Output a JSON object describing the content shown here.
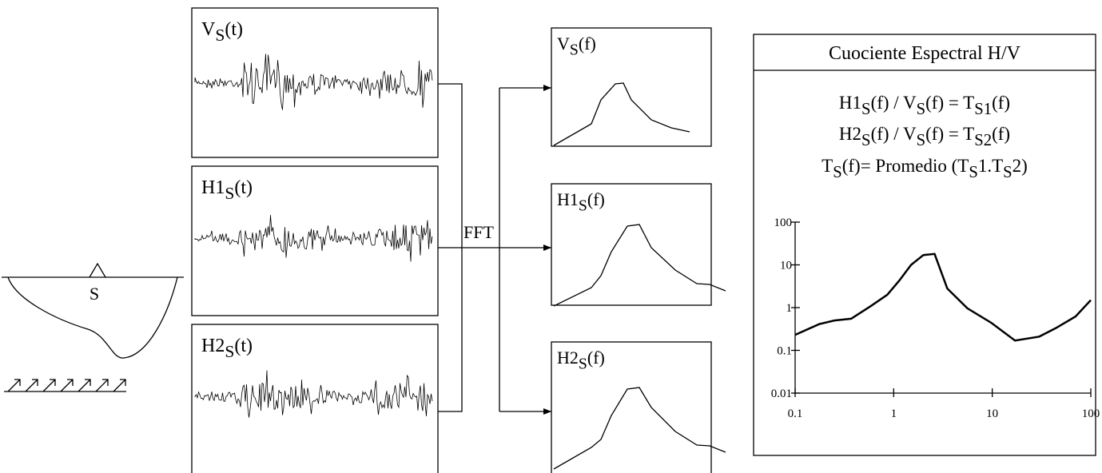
{
  "site_label": "S",
  "fft_label": "FFT",
  "time_panels": [
    [
      {
        "text": "V",
        "sub": false
      },
      {
        "text": "S",
        "sub": true
      },
      {
        "text": "(t)",
        "sub": false
      }
    ],
    [
      {
        "text": "H1",
        "sub": false
      },
      {
        "text": "S",
        "sub": true
      },
      {
        "text": "(t)",
        "sub": false
      }
    ],
    [
      {
        "text": "H2",
        "sub": false
      },
      {
        "text": "S",
        "sub": true
      },
      {
        "text": "(t)",
        "sub": false
      }
    ]
  ],
  "freq_panels": [
    [
      {
        "text": "V",
        "sub": false
      },
      {
        "text": "S",
        "sub": true
      },
      {
        "text": "(f)",
        "sub": false
      }
    ],
    [
      {
        "text": "H1",
        "sub": false
      },
      {
        "text": "S",
        "sub": true
      },
      {
        "text": "(f)",
        "sub": false
      }
    ],
    [
      {
        "text": "H2",
        "sub": false
      },
      {
        "text": "S",
        "sub": true
      },
      {
        "text": "(f)",
        "sub": false
      }
    ]
  ],
  "ratio_box": {
    "title": "Cuociente Espectral H/V",
    "equations": [
      [
        {
          "text": "H1",
          "sub": false
        },
        {
          "text": "S",
          "sub": true
        },
        {
          "text": "(f) / V",
          "sub": false
        },
        {
          "text": "S",
          "sub": true
        },
        {
          "text": "(f) = T",
          "sub": false
        },
        {
          "text": "S1",
          "sub": true
        },
        {
          "text": "(f)",
          "sub": false
        }
      ],
      [
        {
          "text": "H2",
          "sub": false
        },
        {
          "text": "S",
          "sub": true
        },
        {
          "text": "(f) / V",
          "sub": false
        },
        {
          "text": "S",
          "sub": true
        },
        {
          "text": "(f) = T",
          "sub": false
        },
        {
          "text": "S2",
          "sub": true
        },
        {
          "text": "(f)",
          "sub": false
        }
      ],
      [
        {
          "text": "T",
          "sub": false
        },
        {
          "text": "S",
          "sub": true
        },
        {
          "text": "(f)= Promedio (T",
          "sub": false
        },
        {
          "text": "S",
          "sub": true
        },
        {
          "text": "1.T",
          "sub": false
        },
        {
          "text": "S",
          "sub": true
        },
        {
          "text": "2)",
          "sub": false
        }
      ]
    ],
    "chart_data": {
      "type": "line",
      "x": [
        0.1,
        0.175,
        0.25,
        0.37,
        0.59,
        0.86,
        1.14,
        1.5,
        2.0,
        2.6,
        3.5,
        5.6,
        9.8,
        17,
        30,
        44,
        70,
        100
      ],
      "values": [
        0.23,
        0.41,
        0.5,
        0.55,
        1.1,
        2,
        4.3,
        10,
        17,
        18,
        2.8,
        0.96,
        0.44,
        0.17,
        0.21,
        0.33,
        0.62,
        1.5
      ],
      "xlim": [
        0.1,
        100
      ],
      "ylim": [
        0.01,
        100
      ],
      "xticks": [
        0.1,
        1,
        10,
        100
      ],
      "yticks": [
        0.01,
        0.1,
        1,
        10,
        100
      ],
      "xscale": "log",
      "yscale": "log",
      "color": "#000000"
    }
  }
}
